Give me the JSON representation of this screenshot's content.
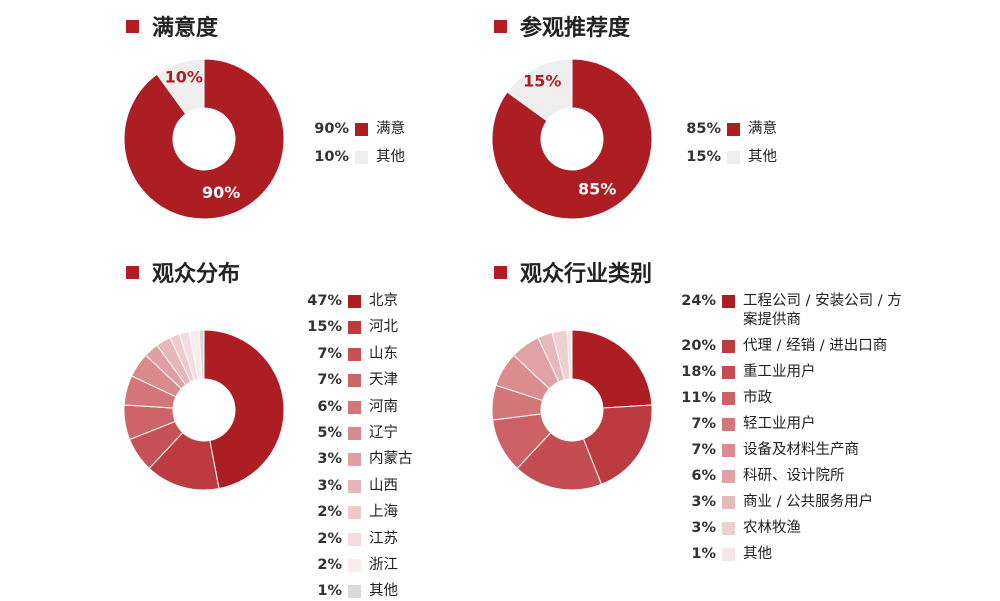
{
  "chart_data": [
    {
      "type": "pie",
      "title": "满意度",
      "donut": true,
      "categories": [
        "满意",
        "其他"
      ],
      "values": [
        90,
        10
      ],
      "value_labels": [
        "90%",
        "10%"
      ],
      "colors": [
        "#ad1e24",
        "#eeeeee"
      ],
      "slice_labels": [
        "90%",
        "10%"
      ]
    },
    {
      "type": "pie",
      "title": "参观推荐度",
      "donut": true,
      "categories": [
        "满意",
        "其他"
      ],
      "values": [
        85,
        15
      ],
      "value_labels": [
        "85%",
        "15%"
      ],
      "colors": [
        "#ad1e24",
        "#eeeeee"
      ],
      "slice_labels": [
        "85%",
        "15%"
      ]
    },
    {
      "type": "pie",
      "title": "观众分布",
      "donut": true,
      "categories": [
        "北京",
        "河北",
        "山东",
        "天津",
        "河南",
        "辽宁",
        "内蒙古",
        "山西",
        "上海",
        "江苏",
        "浙江",
        "其他"
      ],
      "values": [
        47,
        15,
        7,
        7,
        6,
        5,
        3,
        3,
        2,
        2,
        2,
        1
      ],
      "value_labels": [
        "47%",
        "15%",
        "7%",
        "7%",
        "6%",
        "5%",
        "3%",
        "3%",
        "2%",
        "2%",
        "2%",
        "1%"
      ],
      "colors": [
        "#ad1e24",
        "#bb3b40",
        "#c65156",
        "#cd6468",
        "#d3767a",
        "#d98a8d",
        "#e09fa2",
        "#e7b6b8",
        "#eecacc",
        "#f3dcdd",
        "#f8eced",
        "#d9d9d9"
      ]
    },
    {
      "type": "pie",
      "title": "观众行业类别",
      "donut": true,
      "categories": [
        "工程公司 / 安装公司 / 方案提供商",
        "代理 / 经销 / 进出口商",
        "重工业用户",
        "市政",
        "轻工业用户",
        "设备及材料生产商",
        "科研、设计院所",
        "商业 / 公共服务用户",
        "农林牧渔",
        "其他"
      ],
      "values": [
        24,
        20,
        18,
        11,
        7,
        7,
        6,
        3,
        3,
        1
      ],
      "value_labels": [
        "24%",
        "20%",
        "18%",
        "11%",
        "7%",
        "7%",
        "6%",
        "3%",
        "3%",
        "1%"
      ],
      "colors": [
        "#ad1e24",
        "#bb3b40",
        "#c44d52",
        "#cc6166",
        "#d3767a",
        "#da8c8f",
        "#e1a2a5",
        "#e8b9bb",
        "#efd0d1",
        "#f6e6e7"
      ]
    }
  ]
}
